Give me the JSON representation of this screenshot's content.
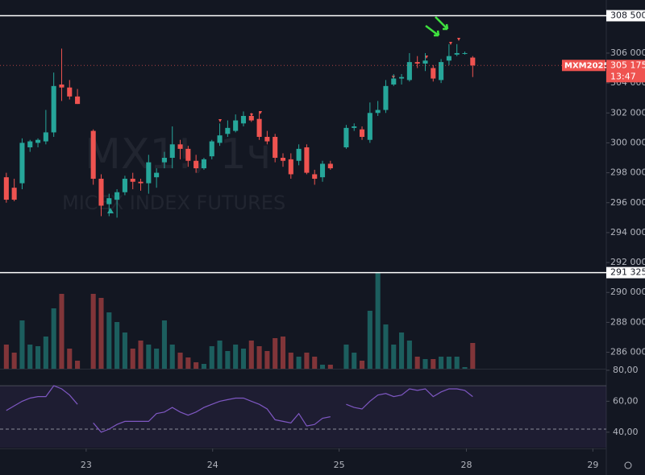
{
  "chart_data": {
    "type": "candlestick",
    "watermark": "MX1!, 1ч",
    "watermark_subtitle": "MICEX INDEX FUTURES",
    "up_color": "#26a69a",
    "down_color": "#ef5350",
    "xlim": [
      -0.8,
      75.9
    ],
    "xticks": [
      {
        "value": 10.1,
        "label": "23"
      },
      {
        "value": 26.1,
        "label": "24"
      },
      {
        "value": 42.1,
        "label": "25"
      },
      {
        "value": 58.2,
        "label": "28"
      },
      {
        "value": 74.2,
        "label": "29"
      }
    ],
    "ylim": [
      284900,
      309550
    ],
    "yticks": [
      {
        "value": 306000,
        "label": "306 000"
      },
      {
        "value": 304000,
        "label": "304 000"
      },
      {
        "value": 302000,
        "label": "302 000"
      },
      {
        "value": 300000,
        "label": "300 000"
      },
      {
        "value": 298000,
        "label": "298 000"
      },
      {
        "value": 296000,
        "label": "296 000"
      },
      {
        "value": 294000,
        "label": "294 000"
      },
      {
        "value": 292000,
        "label": "292 000"
      },
      {
        "value": 290000,
        "label": "290 000"
      },
      {
        "value": 288000,
        "label": "288 000"
      },
      {
        "value": 286000,
        "label": "286 000"
      }
    ],
    "levels": [
      {
        "value": 308500,
        "label": "308 500"
      },
      {
        "value": 291325,
        "label": "291 325"
      }
    ],
    "last_price": {
      "symbol": "MXM2025",
      "value": 305175,
      "label": "305 175",
      "countdown": "13:47"
    },
    "candles": [
      [
        297700,
        298000,
        296000,
        296200
      ],
      [
        297000,
        297600,
        296100,
        296200
      ],
      [
        297300,
        300300,
        296900,
        300000
      ],
      [
        299700,
        300200,
        299400,
        300100
      ],
      [
        300000,
        300300,
        299700,
        300200
      ],
      [
        300100,
        302200,
        299900,
        300700
      ],
      [
        300700,
        304700,
        300400,
        303800
      ],
      [
        303900,
        306300,
        302800,
        303700
      ],
      [
        303700,
        304200,
        302900,
        303100
      ],
      [
        303100,
        303600,
        302600,
        302600
      ],
      null,
      [
        300800,
        300900,
        297200,
        297600
      ],
      [
        297600,
        297900,
        295100,
        295800
      ],
      [
        295900,
        296600,
        295100,
        296300
      ],
      [
        296200,
        296900,
        295000,
        296700
      ],
      [
        296700,
        297800,
        296500,
        297600
      ],
      [
        297600,
        298000,
        296900,
        297400
      ],
      [
        297400,
        297600,
        296800,
        297300
      ],
      [
        297300,
        299200,
        296600,
        298700
      ],
      [
        297700,
        298300,
        297000,
        298000
      ],
      [
        298700,
        299400,
        298300,
        299000
      ],
      [
        299000,
        301100,
        298300,
        299900
      ],
      [
        299900,
        300200,
        298900,
        299600
      ],
      [
        299600,
        299800,
        298400,
        298800
      ],
      [
        298800,
        299200,
        298000,
        298300
      ],
      [
        298300,
        299000,
        298200,
        298900
      ],
      [
        299100,
        300200,
        298900,
        300100
      ],
      [
        300000,
        301300,
        299800,
        300500
      ],
      [
        300600,
        301500,
        300400,
        301000
      ],
      [
        300800,
        301900,
        300700,
        301500
      ],
      [
        301300,
        302100,
        301100,
        301800
      ],
      [
        301800,
        302000,
        301400,
        301500
      ],
      [
        301600,
        302100,
        300200,
        300400
      ],
      [
        300400,
        300800,
        299900,
        300100
      ],
      [
        300400,
        300600,
        298700,
        299000
      ],
      [
        299000,
        299300,
        298400,
        298800
      ],
      [
        298900,
        299300,
        297600,
        297900
      ],
      [
        298800,
        299900,
        298500,
        299600
      ],
      [
        299700,
        299900,
        297900,
        298000
      ],
      [
        297900,
        298200,
        297200,
        297600
      ],
      [
        297700,
        298800,
        297400,
        298600
      ],
      [
        298600,
        298800,
        298200,
        298300
      ],
      null,
      [
        299700,
        301200,
        299600,
        301000
      ],
      [
        301000,
        301300,
        300800,
        301100
      ],
      [
        300900,
        301100,
        300200,
        300400
      ],
      [
        300200,
        302700,
        300000,
        302000
      ],
      [
        302000,
        302800,
        301800,
        302200
      ],
      [
        302200,
        304200,
        302000,
        303800
      ],
      [
        303900,
        304600,
        303800,
        304300
      ],
      [
        304300,
        304600,
        303900,
        304400
      ],
      [
        304200,
        306000,
        304100,
        305400
      ],
      [
        305400,
        305800,
        305000,
        305300
      ],
      [
        305300,
        306000,
        304800,
        305500
      ],
      [
        305000,
        305200,
        304100,
        304300
      ],
      [
        304200,
        305600,
        304000,
        305400
      ],
      [
        305500,
        306600,
        305200,
        305800
      ],
      [
        305900,
        306600,
        305800,
        306000
      ],
      [
        306000,
        306100,
        305900,
        306000
      ],
      [
        305700,
        305800,
        304400,
        305175
      ]
    ],
    "volume_ylim": [
      0,
      120
    ],
    "volume": [
      30,
      20,
      60,
      30,
      28,
      40,
      75,
      93,
      25,
      10,
      null,
      93,
      88,
      70,
      58,
      45,
      25,
      35,
      30,
      25,
      60,
      30,
      20,
      14,
      8,
      6,
      28,
      35,
      22,
      30,
      25,
      35,
      28,
      22,
      38,
      40,
      20,
      15,
      20,
      15,
      5,
      5,
      null,
      30,
      20,
      10,
      72,
      120,
      55,
      30,
      45,
      35,
      15,
      12,
      12,
      15,
      15,
      15,
      2,
      32
    ],
    "rsi_ylim": [
      29.5,
      81
    ],
    "rsi_yticks": [
      {
        "value": 80,
        "label": "80,00"
      },
      {
        "value": 60,
        "label": "60,00"
      },
      {
        "value": 40,
        "label": "40,00"
      }
    ],
    "rsi_band": [
      30,
      70
    ],
    "rsi_level": 42,
    "rsi_color": "#7e57c2",
    "rsi": [
      54,
      57,
      60,
      62,
      63,
      63,
      70,
      68,
      64,
      58,
      null,
      46,
      40,
      42,
      45,
      47,
      47,
      47,
      47,
      52,
      53,
      56,
      53,
      51,
      53,
      56,
      58,
      60,
      61,
      62,
      62,
      60,
      58,
      55,
      48,
      47,
      46,
      52,
      44,
      45,
      49,
      50,
      null,
      58,
      56,
      55,
      60,
      64,
      65,
      63,
      64,
      68,
      67,
      68,
      63,
      66,
      68,
      68,
      67,
      63
    ]
  }
}
